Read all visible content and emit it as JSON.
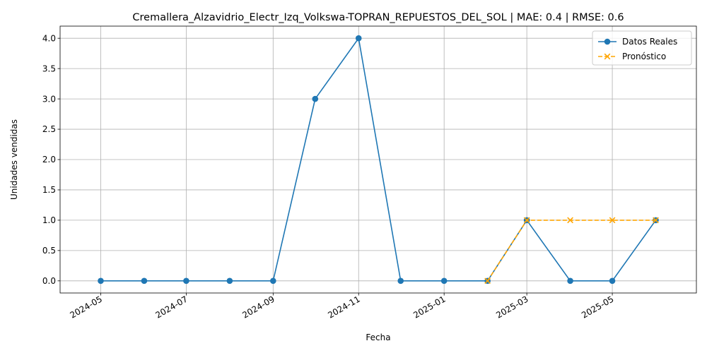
{
  "chart_data": {
    "type": "line",
    "title": "Cremallera_Alzavidrio_Electr_Izq_Volkswa-TOPRAN_REPUESTOS_DEL_SOL | MAE: 0.4 | RMSE: 0.6",
    "xlabel": "Fecha",
    "ylabel": "Unidades vendidas",
    "xlim": [
      "2024-04-02",
      "2025-06-30"
    ],
    "ylim": [
      -0.2,
      4.2
    ],
    "x_ticks": [
      "2024-05",
      "2024-07",
      "2024-09",
      "2024-11",
      "2025-01",
      "2025-03",
      "2025-05"
    ],
    "y_ticks": [
      "0.0",
      "0.5",
      "1.0",
      "1.5",
      "2.0",
      "2.5",
      "3.0",
      "3.5",
      "4.0"
    ],
    "grid": true,
    "legend_position": "top-right",
    "series": [
      {
        "name": "Datos Reales",
        "color": "#1f77b4",
        "style": "solid",
        "marker": "circle",
        "x": [
          "2024-05-01",
          "2024-06-01",
          "2024-07-01",
          "2024-08-01",
          "2024-09-01",
          "2024-10-01",
          "2024-11-01",
          "2024-12-01",
          "2025-01-01",
          "2025-02-01",
          "2025-03-01",
          "2025-04-01",
          "2025-05-01",
          "2025-06-01"
        ],
        "values": [
          0,
          0,
          0,
          0,
          0,
          3,
          4,
          0,
          0,
          0,
          1,
          0,
          0,
          1
        ]
      },
      {
        "name": "Pronóstico",
        "color": "#ffa500",
        "style": "dashed",
        "marker": "x",
        "x": [
          "2025-02-01",
          "2025-03-01",
          "2025-04-01",
          "2025-05-01",
          "2025-06-01"
        ],
        "values": [
          0,
          1,
          1,
          1,
          1
        ]
      }
    ]
  }
}
